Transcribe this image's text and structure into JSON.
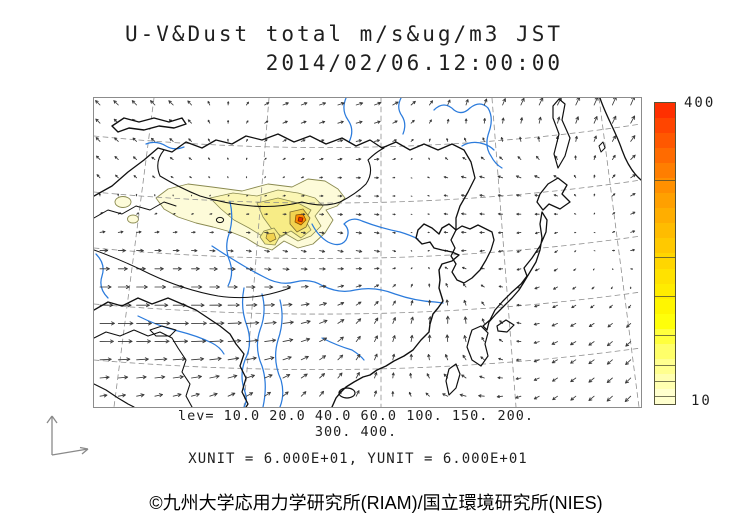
{
  "title": {
    "line1": "U-V&Dust total m/s&ug/m3 JST",
    "line2": "2014/02/06.12:00:00"
  },
  "legend": {
    "levels_line1": "lev= 10.0 20.0 40.0 60.0 100. 150. 200.",
    "levels_line2": "300. 400.",
    "units_line": "XUNIT = 6.000E+01, YUNIT = 6.000E+01"
  },
  "colorbar": {
    "max_label": "400",
    "min_label": "10",
    "stops_top_to_bottom": [
      "#FF3000",
      "#FF4500",
      "#FF5800",
      "#FF6B00",
      "#FF7E00",
      "#FF9000",
      "#FFA000",
      "#FFAE00",
      "#FFBC00",
      "#FFC900",
      "#FFD600",
      "#FFE200",
      "#FFEC00",
      "#FFF600",
      "#FFFF0A",
      "#FFFF3D",
      "#FFFF69",
      "#FFFF8F",
      "#FFFFB0",
      "#FFFFCE"
    ]
  },
  "footer": {
    "copyright": "©九州大学応用力学研究所(RIAM)/国立環境研究所(NIES)"
  },
  "chart_data": {
    "type": "map-vector-contour",
    "title": "U-V&Dust total m/s&ug/m3 JST",
    "timestamp": "2014/02/06.12:00:00",
    "vector_variable": "U-V wind (m/s)",
    "shaded_variable": "Dust total (ug/m3)",
    "contour_levels": [
      10.0,
      20.0,
      40.0,
      60.0,
      100,
      150,
      200,
      300,
      400
    ],
    "colorbar_range": [
      10,
      400
    ],
    "colorbar_orientation": "vertical-right",
    "xunit": "6.000E+01",
    "yunit": "6.000E+01",
    "map_colors": {
      "coastline": "#101010",
      "river": "#2b7bdc",
      "graticule": "#8f8f8f",
      "wind_arrow": "#383838",
      "plume_fills": [
        "#FDFBD9",
        "#FBF6B4",
        "#F7EC86",
        "#F2D24F",
        "#FF8A00",
        "#E03000"
      ]
    }
  }
}
